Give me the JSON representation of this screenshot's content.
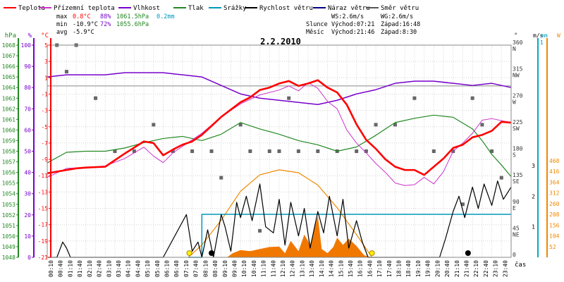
{
  "chart_data": {
    "type": "line",
    "title": "2.2.2010",
    "xlabel": "čas",
    "legend": [
      {
        "name": "Teplota",
        "color": "#ff0000"
      },
      {
        "name": "Přízemní teplota",
        "color": "#cc33cc"
      },
      {
        "name": "Vlhkost",
        "color": "#7700cc"
      },
      {
        "name": "Tlak",
        "color": "#228822"
      },
      {
        "name": "Srážky",
        "color": "#0099bb"
      },
      {
        "name": "Rychlost větru",
        "color": "#000000"
      },
      {
        "name": "Náraz větru",
        "color": "#000088"
      },
      {
        "name": "Směr větru",
        "color": "#555555"
      }
    ],
    "stats": {
      "max": {
        "label": "max",
        "temp": "0.8°C",
        "hum": "88%",
        "press": "1061.5hPa",
        "rain": "0.2mm"
      },
      "min": {
        "label": "min",
        "temp": "-10.9°C",
        "hum": "72%",
        "press": "1055.6hPa"
      },
      "avg": {
        "label": "avg",
        "temp": "-5.9°C"
      },
      "wind": {
        "ws": "WS:2.6m/s",
        "wg": "WG:2.6m/s"
      },
      "sun": {
        "label": "Slunce",
        "rise": "Východ:07:21",
        "set": "Západ:16:48"
      },
      "moon": {
        "label": "Měsíc",
        "rise": "Východ:21:46",
        "set": "Západ:8:30"
      }
    },
    "axes": {
      "hpa": {
        "title": "hPa",
        "color": "#228822",
        "ticks": [
          "1068",
          "1067",
          "1066",
          "1065",
          "1064",
          "1063",
          "1062",
          "1061",
          "1060",
          "1059",
          "1058",
          "1057",
          "1056",
          "1055",
          "1054",
          "1053",
          "1052",
          "1051",
          "1050",
          "1049",
          "1048"
        ]
      },
      "pct": {
        "title": "%",
        "color": "#7700cc",
        "ticks": [
          "100",
          "90",
          "80",
          "70",
          "60",
          "50",
          "40",
          "30",
          "20",
          "10",
          "0"
        ]
      },
      "degc": {
        "title": "°C",
        "color": "#ff0000",
        "ticks": [
          "5",
          "3",
          "1",
          "-1",
          "-3",
          "-5",
          "-7",
          "-9",
          "-11",
          "-13",
          "-15",
          "-17",
          "-19",
          "-21"
        ]
      },
      "dir": {
        "title": "°",
        "ticks": [
          {
            "deg": "360",
            "cp": "N"
          },
          {
            "deg": "315",
            "cp": "NW"
          },
          {
            "deg": "270",
            "cp": "W"
          },
          {
            "deg": "225",
            "cp": "SW"
          },
          {
            "deg": "180",
            "cp": "S"
          },
          {
            "deg": "135",
            "cp": "SE"
          },
          {
            "deg": "90",
            "cp": "E"
          },
          {
            "deg": "45",
            "cp": "NE"
          },
          {
            "deg": "0",
            "cp": ""
          }
        ]
      },
      "ms": {
        "title": "m/s",
        "color": "#000000",
        "ticks": [
          "3",
          "2",
          "1"
        ]
      },
      "mm": {
        "title": "mm",
        "color": "#0099bb",
        "ticks": [
          "1"
        ]
      },
      "wm2": {
        "title": "W",
        "color": "#ee8800",
        "ticks": [
          "468",
          "416",
          "364",
          "312",
          "260",
          "208",
          "156",
          "104",
          "52"
        ]
      }
    },
    "x_ticks": [
      "00:10",
      "00:40",
      "01:10",
      "01:40",
      "02:10",
      "02:40",
      "03:10",
      "03:40",
      "04:10",
      "04:40",
      "05:10",
      "05:40",
      "06:10",
      "06:40",
      "07:10",
      "07:40",
      "08:10",
      "08:40",
      "09:10",
      "09:40",
      "10:10",
      "10:40",
      "11:10",
      "11:40",
      "12:10",
      "12:40",
      "13:10",
      "13:40",
      "14:10",
      "14:40",
      "15:10",
      "15:40",
      "16:10",
      "16:40",
      "17:10",
      "17:40",
      "18:10",
      "18:40",
      "19:10",
      "19:40",
      "20:10",
      "20:40",
      "21:10",
      "21:40",
      "22:10",
      "22:40",
      "23:10",
      "23:40"
    ],
    "series": [
      {
        "name": "Teplota",
        "unit": "°C",
        "x": [
          0,
          1,
          1.5,
          2,
          3,
          4,
          5,
          5.5,
          6,
          6.5,
          7,
          7.5,
          8,
          8.5,
          9,
          9.5,
          10,
          10.5,
          11,
          11.5,
          12,
          12.5,
          13,
          13.5,
          14,
          14.5,
          15,
          15.5,
          16,
          16.5,
          17,
          17.5,
          18,
          18.5,
          19,
          19.5,
          20,
          20.5,
          21,
          21.5,
          22,
          22.5,
          23,
          23.5,
          24
        ],
        "values": [
          -10.7,
          -10.3,
          -10.1,
          -10.0,
          -9.9,
          -8.3,
          -6.8,
          -7.0,
          -8.5,
          -7.8,
          -7.2,
          -6.8,
          -6.0,
          -4.9,
          -3.8,
          -2.9,
          -2.0,
          -1.4,
          -0.5,
          -0.2,
          0.3,
          0.6,
          0.0,
          0.3,
          0.7,
          -0.2,
          -0.8,
          -2.3,
          -4.7,
          -6.6,
          -7.7,
          -9.0,
          -9.9,
          -10.3,
          -10.3,
          -10.9,
          -9.9,
          -8.9,
          -7.6,
          -7.2,
          -6.3,
          -6.0,
          -5.5,
          -4.4,
          -4.5
        ]
      },
      {
        "name": "Přízemní teplota",
        "unit": "°C",
        "x": [
          0,
          1,
          2,
          3,
          4,
          5,
          5.5,
          6,
          6.5,
          7,
          8,
          9,
          10,
          11,
          12,
          12.5,
          13,
          13.5,
          14,
          14.5,
          15,
          15.5,
          16,
          16.5,
          17,
          17.5,
          18,
          18.5,
          19,
          19.5,
          20,
          20.5,
          21,
          21.5,
          22,
          22.5,
          23,
          24
        ],
        "values": [
          -11.2,
          -10.1,
          -10.0,
          -9.8,
          -8.9,
          -7.5,
          -8.6,
          -9.4,
          -8.2,
          -7.4,
          -5.8,
          -3.8,
          -2.2,
          -1.1,
          -0.5,
          0.0,
          -0.6,
          0.4,
          -0.3,
          -1.9,
          -2.8,
          -5.4,
          -7.0,
          -8.2,
          -9.5,
          -10.6,
          -11.9,
          -12.2,
          -12.1,
          -11.2,
          -12.0,
          -10.5,
          -8.0,
          -7.0,
          -5.8,
          -4.2,
          -4.0,
          -4.5
        ]
      },
      {
        "name": "Vlhkost",
        "unit": "%",
        "x": [
          0,
          1,
          2,
          3,
          4,
          5,
          6,
          7,
          8,
          9,
          10,
          11,
          12,
          13,
          14,
          15,
          16,
          17,
          18,
          19,
          20,
          21,
          22,
          23,
          23.5,
          24
        ],
        "values": [
          85,
          86,
          86,
          86,
          87,
          87,
          87,
          86,
          85,
          81,
          77,
          75,
          74,
          73,
          72,
          74,
          77,
          79,
          82,
          83,
          83,
          82,
          81,
          82,
          81,
          80
        ]
      },
      {
        "name": "Tlak",
        "unit": "hPa",
        "x": [
          0,
          1,
          2,
          3,
          4,
          5,
          6,
          7,
          8,
          9,
          10,
          11,
          12,
          13,
          14,
          15,
          16,
          17,
          18,
          19,
          20,
          21,
          22,
          22.5,
          23,
          23.5,
          24
        ],
        "values": [
          1056.9,
          1057.9,
          1058.0,
          1058.0,
          1058.3,
          1058.8,
          1059.2,
          1059.4,
          1059.0,
          1059.6,
          1060.7,
          1060.1,
          1059.6,
          1059.0,
          1058.6,
          1058.0,
          1058.4,
          1059.5,
          1060.7,
          1061.1,
          1061.4,
          1061.2,
          1060.1,
          1059.0,
          1057.7,
          1056.7,
          1055.6
        ]
      },
      {
        "name": "Srážky",
        "unit": "mm",
        "x": [
          7.3,
          8.0,
          24
        ],
        "values": [
          0.0,
          0.2,
          0.2
        ]
      },
      {
        "name": "Rychlost větru",
        "unit": "m/s",
        "x": [
          0,
          0.5,
          0.8,
          1,
          1.2,
          1.5,
          6,
          7.2,
          7.5,
          7.8,
          8,
          8.3,
          8.6,
          9,
          9.2,
          9.5,
          9.8,
          10,
          10.3,
          10.6,
          11,
          11.3,
          11.7,
          12,
          12.3,
          12.6,
          13,
          13.3,
          13.6,
          14,
          14.3,
          14.6,
          15,
          15.3,
          15.6,
          16,
          16.3,
          16.6,
          17,
          17.2,
          17.5,
          18,
          18.2,
          18.5,
          19,
          19.3,
          19.6,
          20,
          20.3,
          20.6,
          21,
          21.3,
          21.6,
          22,
          22.3,
          22.6,
          23,
          23.3,
          23.6,
          24
        ],
        "values": [
          0,
          0,
          0.5,
          0.3,
          0,
          0,
          0,
          1.4,
          0.2,
          0.5,
          0,
          0.9,
          0,
          1.4,
          1.0,
          0.2,
          1.8,
          1.3,
          2.0,
          1.2,
          2.4,
          1.0,
          0.8,
          1.9,
          0.4,
          1.8,
          0.7,
          1.6,
          0.3,
          1.5,
          0.8,
          2.0,
          0.7,
          1.9,
          0.3,
          1.2,
          0.5,
          0,
          0,
          0,
          0,
          0,
          0,
          0,
          0,
          0,
          0,
          0,
          0,
          0.6,
          1.5,
          2.0,
          1.3,
          2.3,
          1.6,
          2.4,
          1.7,
          2.5,
          1.9,
          2.3
        ]
      },
      {
        "name": "Náraz větru",
        "unit": "m/s",
        "x": [
          0,
          24
        ],
        "values": [
          0,
          0
        ]
      },
      {
        "name": "Směr větru",
        "unit": "°",
        "x": [
          0.5,
          1,
          1.5,
          2.5,
          3.5,
          4.5,
          5.5,
          6.5,
          7.5,
          8.5,
          9,
          10,
          10.5,
          11,
          11.5,
          12,
          12.5,
          13,
          14,
          15,
          16,
          16.5,
          17,
          18,
          19,
          20,
          21,
          21.5,
          22,
          22.5,
          23,
          23.5
        ],
        "values": [
          360,
          315,
          360,
          270,
          180,
          180,
          225,
          180,
          180,
          180,
          135,
          225,
          180,
          45,
          180,
          180,
          270,
          180,
          180,
          180,
          180,
          180,
          225,
          225,
          270,
          180,
          180,
          90,
          270,
          225,
          180,
          135
        ]
      },
      {
        "name": "Sluneční záření",
        "unit": "W/m²",
        "x": [
          7.3,
          8,
          9,
          10,
          11,
          12,
          13,
          14,
          15,
          16,
          16.8
        ],
        "values": [
          0,
          60,
          180,
          320,
          400,
          424,
          410,
          350,
          240,
          110,
          0
        ]
      },
      {
        "name": "Sluneční záření (měřené)",
        "unit": "W/m²",
        "x": [
          9.3,
          9.6,
          10,
          10.5,
          11,
          11.5,
          12,
          12.3,
          12.6,
          13,
          13.3,
          13.6,
          14,
          14.2,
          14.5,
          14.8,
          15,
          15.3,
          15.6,
          16,
          16.4,
          16.8
        ],
        "values": [
          0,
          20,
          35,
          30,
          40,
          50,
          52,
          20,
          80,
          30,
          110,
          60,
          200,
          40,
          20,
          50,
          95,
          60,
          90,
          55,
          10,
          0
        ]
      }
    ]
  }
}
